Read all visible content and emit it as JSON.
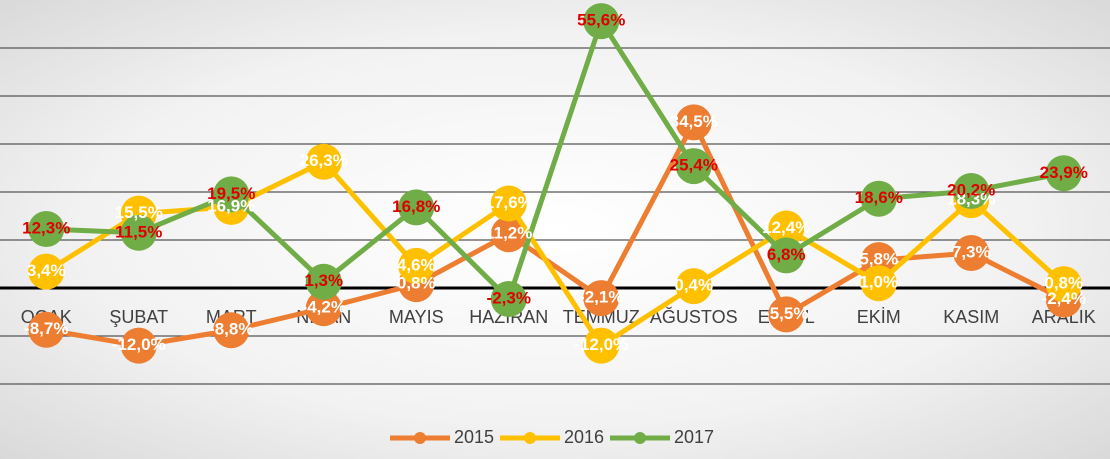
{
  "chart_data": {
    "type": "line",
    "categories": [
      "OCAK",
      "ŞUBAT",
      "MART",
      "NİSAN",
      "MAYIS",
      "HAZİRAN",
      "TEMMUZ",
      "AĞUSTOS",
      "EYLÜL",
      "EKİM",
      "KASIM",
      "ARALIK"
    ],
    "series": [
      {
        "name": "2015",
        "color": "#ed7d31",
        "label_color": "#ffffff",
        "values": [
          -8.7,
          -12.0,
          -8.8,
          -4.2,
          0.8,
          11.2,
          -2.1,
          34.5,
          -5.5,
          5.8,
          7.3,
          -2.4
        ],
        "value_labels": [
          "-8,7%",
          "-12,0%",
          "-8,8%",
          "-4,2%",
          "0,8%",
          "11,2%",
          "-2,1%",
          "34,5%",
          "-5,5%",
          "5,8%",
          "7,3%",
          "-2,4%"
        ]
      },
      {
        "name": "2016",
        "color": "#ffc000",
        "label_color": "#ffffff",
        "values": [
          3.4,
          15.5,
          16.9,
          26.3,
          4.6,
          17.6,
          -12.0,
          0.4,
          12.4,
          1.0,
          18.3,
          0.8
        ],
        "value_labels": [
          "3,4%",
          "15,5%",
          "16,9%",
          "26,3%",
          "4,6%",
          "17,6%",
          "-12,0%",
          "0,4%",
          "12,4%",
          "1,0%",
          "18,3%",
          "0,8%"
        ]
      },
      {
        "name": "2017",
        "color": "#70ad47",
        "label_color": "#e00000",
        "values": [
          12.3,
          11.5,
          19.5,
          1.3,
          16.8,
          -2.3,
          55.6,
          25.4,
          6.8,
          18.6,
          20.2,
          23.9
        ],
        "value_labels": [
          "12,3%",
          "11,5%",
          "19,5%",
          "1,3%",
          "16,8%",
          "-2,3%",
          "55,6%",
          "25,4%",
          "6,8%",
          "18,6%",
          "20,2%",
          "23,9%"
        ]
      }
    ],
    "ylim": [
      -20,
      60
    ],
    "yticks": [
      -20,
      -10,
      0,
      10,
      20,
      30,
      40,
      50
    ],
    "grid": true,
    "legend": "bottom"
  }
}
